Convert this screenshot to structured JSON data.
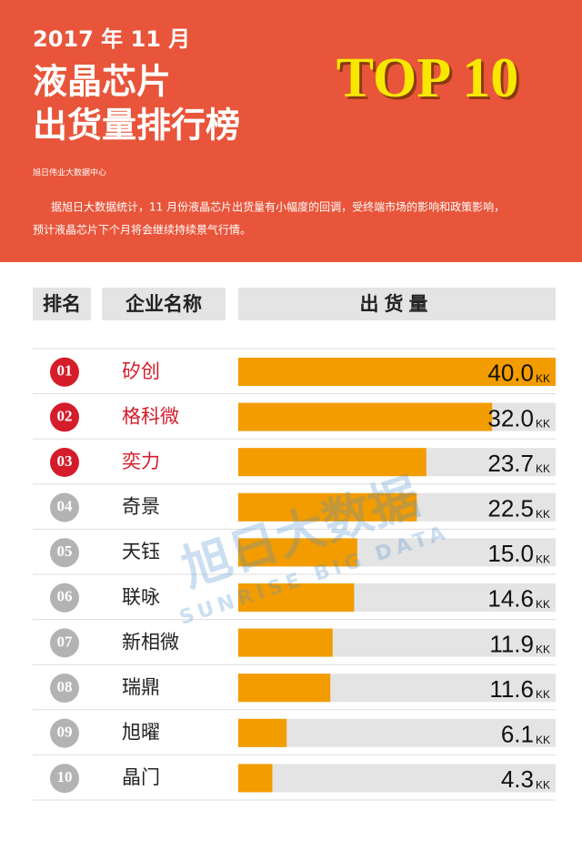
{
  "chart_data": {
    "type": "bar",
    "date": "2017 年 11 月",
    "title_lines": [
      "液晶芯片",
      "出货量排行榜"
    ],
    "badge": "TOP 10",
    "source": "旭日伟业大数据中心",
    "description_lines": [
      "据旭日大数据统计，11 月份液晶芯片出货量有小幅度的回调，受终端市场的影响和政策影响，",
      "预计液晶芯片下个月将会继续持续景气行情。"
    ],
    "headers": [
      "排名",
      "企业名称",
      "出货量"
    ],
    "ranks": [
      "01",
      "02",
      "03",
      "04",
      "05",
      "06",
      "07",
      "08",
      "09",
      "10"
    ],
    "categories": [
      "矽创",
      "格科微",
      "奕力",
      "奇景",
      "天钰",
      "联咏",
      "新相微",
      "瑞鼎",
      "旭曜",
      "晶门"
    ],
    "values": [
      40.0,
      32.0,
      23.7,
      22.5,
      15.0,
      14.6,
      11.9,
      11.6,
      6.1,
      4.3
    ],
    "value_labels": [
      "40.0",
      "32.0",
      "23.7",
      "22.5",
      "15.0",
      "14.6",
      "11.9",
      "11.6",
      "6.1",
      "4.3"
    ],
    "unit": "KK",
    "color": "#f39c00",
    "track_color": "#e4e4e4",
    "highlight_color": "#d51c2b",
    "rank_color": "#b3b3b3",
    "highlight_count": 3,
    "watermark": [
      "旭日大数据",
      "SUNRISE BIG DATA"
    ]
  }
}
